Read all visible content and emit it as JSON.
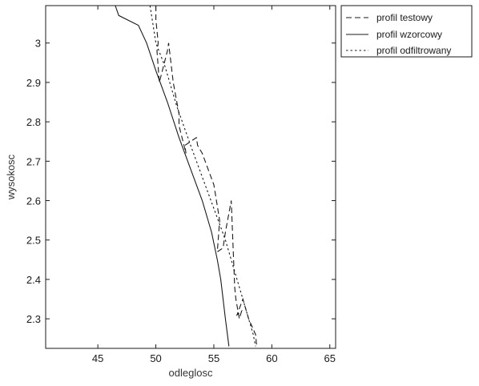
{
  "chart_data": {
    "type": "line",
    "title": "",
    "xlabel": "odleglosc",
    "ylabel": "wysokosc",
    "xlim": [
      40.5,
      65.5
    ],
    "ylim": [
      2.225,
      3.095
    ],
    "xticks": [
      45,
      50,
      55,
      60,
      65
    ],
    "xtick_labels": [
      "45",
      "50",
      "55",
      "60",
      "65"
    ],
    "yticks": [
      2.3,
      2.4,
      2.5,
      2.6,
      2.7,
      2.8,
      2.9,
      3.0
    ],
    "ytick_labels": [
      "2.3",
      "2.4",
      "2.5",
      "2.6",
      "2.7",
      "2.8",
      "2.9",
      "3"
    ],
    "grid": false,
    "legend_position": "outside-top-right",
    "series": [
      {
        "name": "profil testowy",
        "style": "dashed",
        "color": "#1a1a1a",
        "points": [
          [
            50.0,
            3.095
          ],
          [
            50.0,
            3.06
          ],
          [
            50.2,
            3.0
          ],
          [
            50.1,
            2.98
          ],
          [
            50.3,
            2.9
          ],
          [
            51.0,
            2.98
          ],
          [
            51.1,
            3.0
          ],
          [
            51.5,
            2.9
          ],
          [
            52.0,
            2.82
          ],
          [
            52.0,
            2.79
          ],
          [
            52.6,
            2.72
          ],
          [
            52.5,
            2.74
          ],
          [
            53.5,
            2.76
          ],
          [
            53.6,
            2.74
          ],
          [
            54.0,
            2.72
          ],
          [
            55.0,
            2.64
          ],
          [
            55.5,
            2.55
          ],
          [
            55.3,
            2.47
          ],
          [
            55.8,
            2.48
          ],
          [
            56.0,
            2.52
          ],
          [
            56.5,
            2.6
          ],
          [
            56.8,
            2.38
          ],
          [
            56.9,
            2.35
          ],
          [
            57.2,
            2.3
          ],
          [
            57.4,
            2.32
          ],
          [
            57.0,
            2.31
          ],
          [
            57.5,
            2.35
          ],
          [
            58.0,
            2.3
          ],
          [
            58.6,
            2.26
          ],
          [
            58.7,
            2.23
          ]
        ]
      },
      {
        "name": "profil wzorcowy",
        "style": "solid",
        "color": "#1a1a1a",
        "points": [
          [
            46.5,
            3.095
          ],
          [
            46.8,
            3.07
          ],
          [
            48.5,
            3.045
          ],
          [
            49.2,
            3.0
          ],
          [
            50.0,
            2.93
          ],
          [
            51.0,
            2.85
          ],
          [
            52.0,
            2.76
          ],
          [
            53.0,
            2.68
          ],
          [
            54.0,
            2.6
          ],
          [
            54.8,
            2.52
          ],
          [
            55.3,
            2.45
          ],
          [
            55.6,
            2.4
          ],
          [
            55.8,
            2.35
          ],
          [
            56.0,
            2.3
          ],
          [
            56.3,
            2.23
          ]
        ]
      },
      {
        "name": "profil odfiltrowany",
        "style": "dotted",
        "color": "#1a1a1a",
        "points": [
          [
            49.5,
            3.095
          ],
          [
            50.0,
            3.0
          ],
          [
            50.8,
            2.94
          ],
          [
            51.8,
            2.84
          ],
          [
            53.0,
            2.74
          ],
          [
            54.0,
            2.66
          ],
          [
            55.0,
            2.58
          ],
          [
            56.0,
            2.5
          ],
          [
            56.8,
            2.42
          ],
          [
            57.5,
            2.35
          ],
          [
            58.0,
            2.3
          ],
          [
            58.4,
            2.26
          ],
          [
            58.6,
            2.23
          ]
        ]
      }
    ]
  }
}
